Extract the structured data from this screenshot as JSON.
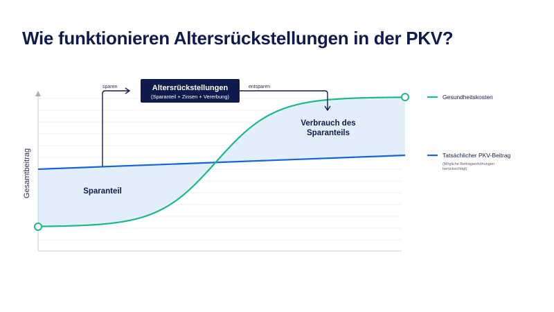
{
  "page": {
    "title": "Wie funktionieren Altersrückstellungen in der PKV?"
  },
  "diagram": {
    "y_axis_label": "Gesamtbeitrag",
    "box": {
      "title": "Altersrückstellungen",
      "subtitle": "(Sparanteil + Zinsen + Vererbung)"
    },
    "arrow_left_label": "sparen",
    "arrow_right_label": "entsparen",
    "region_left_label": "Sparanteil",
    "region_right_label_line1": "Verbrauch des",
    "region_right_label_line2": "Sparanteils",
    "legend": [
      {
        "name": "Gesundheitskosten",
        "color": "#1db88a"
      },
      {
        "name": "Tatsächlicher PKV-Beitrag",
        "color": "#1565d8",
        "note_line1": "(Mögliche Beitragserhöhungen",
        "note_line2": "berücksichtigt)"
      }
    ],
    "colors": {
      "health_cost_curve": "#1db88a",
      "premium_line": "#1565d8",
      "fill": "#e3eefb",
      "box_bg": "#0f1b4c",
      "axis": "#c8ccd6",
      "grid": "#eef0f4",
      "dark_text": "#0f1b4c"
    }
  }
}
